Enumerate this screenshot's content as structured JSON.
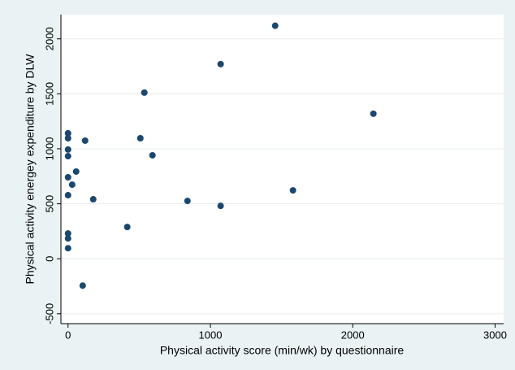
{
  "chart_data": {
    "type": "scatter",
    "x_label": "Physical activity score (min/wk) by questionnaire",
    "y_label": "Physical activity energey expenditure by DLW",
    "color": "#1a476f",
    "x": [
      0,
      0,
      0,
      0,
      0,
      0,
      0,
      0,
      0,
      29,
      57,
      120,
      177,
      103,
      416,
      508,
      536,
      593,
      839,
      1072,
      1072,
      1455,
      1580,
      2145
    ],
    "values": [
      1141,
      1096,
      993,
      933,
      741,
      578,
      230,
      185,
      96,
      674,
      793,
      1074,
      541,
      -244,
      289,
      1096,
      1511,
      941,
      526,
      1770,
      481,
      2119,
      622,
      1319
    ],
    "xlim": [
      -50,
      3060
    ],
    "ylim": [
      -590,
      2220
    ],
    "xticks": [
      0,
      1000,
      2000,
      3000
    ],
    "yticks": [
      -500,
      0,
      500,
      1000,
      1500,
      2000
    ],
    "grid": true
  }
}
